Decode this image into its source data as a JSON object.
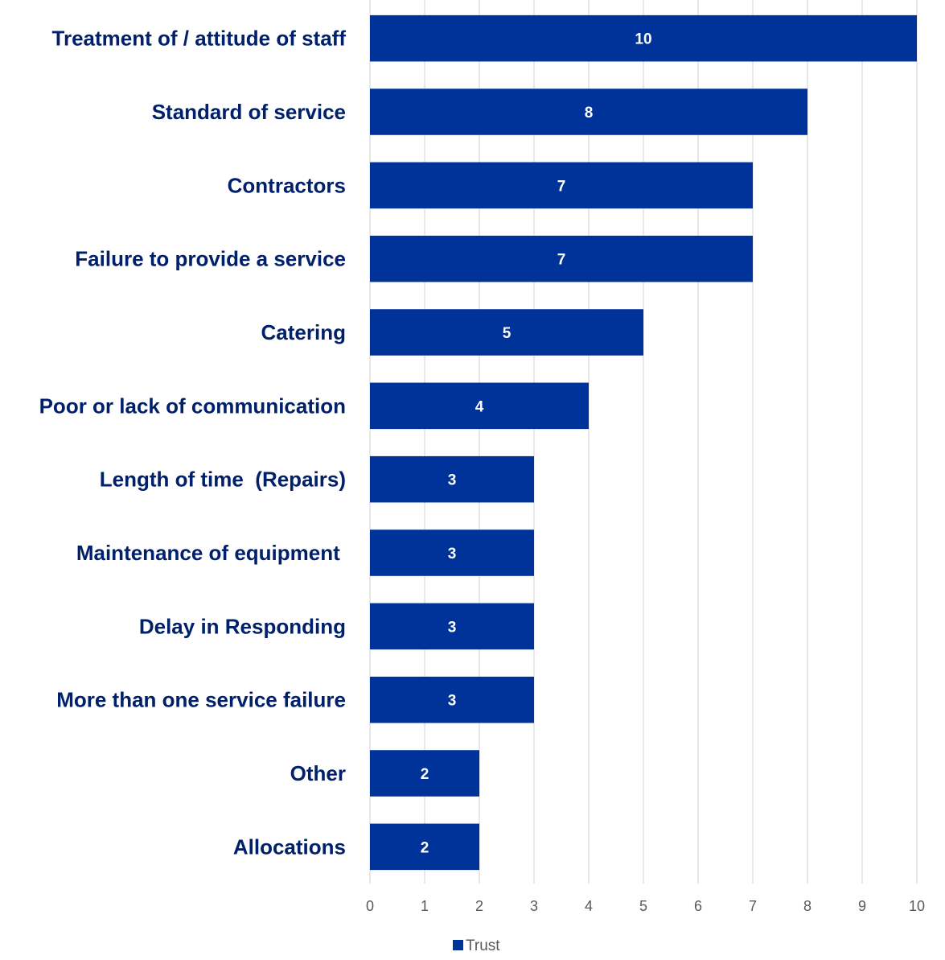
{
  "chart_data": {
    "type": "bar",
    "orientation": "horizontal",
    "title": "",
    "xlabel": "",
    "ylabel": "",
    "categories": [
      "Treatment of / attitude of staff",
      "Standard of service",
      "Contractors",
      "Failure to provide a service",
      "Catering",
      "Poor or lack of communication",
      "Length of time  (Repairs)",
      "Maintenance of equipment ",
      "Delay in Responding",
      "More than one service failure",
      "Other",
      "Allocations"
    ],
    "series": [
      {
        "name": "Trust",
        "values": [
          10,
          8,
          7,
          7,
          5,
          4,
          3,
          3,
          3,
          3,
          2,
          2
        ]
      }
    ],
    "xlim": [
      0,
      10
    ],
    "xticks": [
      "0",
      "1",
      "2",
      "3",
      "4",
      "5",
      "6",
      "7",
      "8",
      "9",
      "10"
    ],
    "grid": "vertical",
    "legend_position": "bottom",
    "data_labels": true,
    "colors": {
      "bar": "#00339A",
      "label_text": "#00206B",
      "tick_text": "#595959",
      "grid": "#D9D9D9",
      "data_label": "#FFFFFF"
    }
  }
}
